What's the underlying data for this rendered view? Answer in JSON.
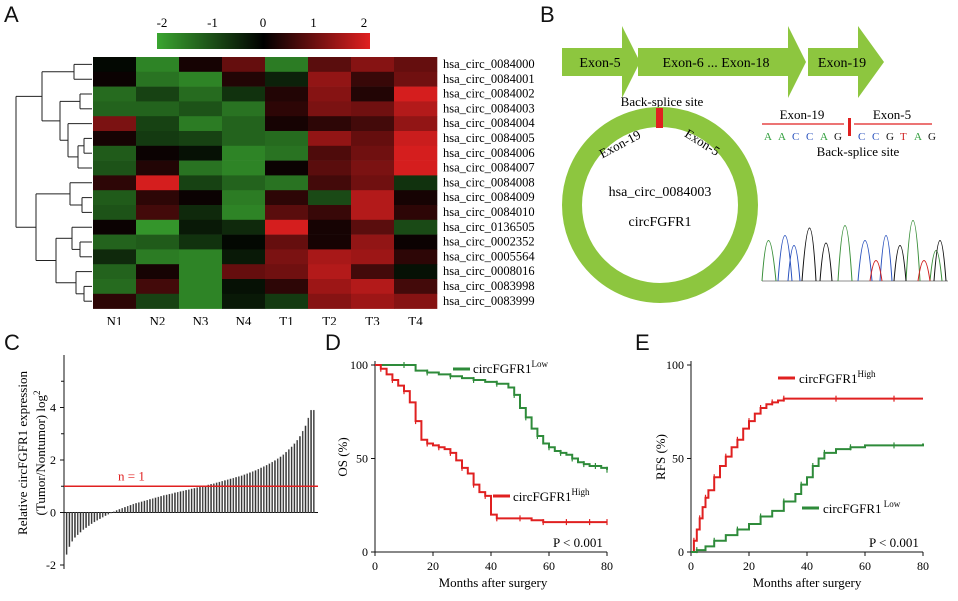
{
  "panels": {
    "a": "A",
    "b": "B",
    "c": "C",
    "d": "D",
    "e": "E"
  },
  "colors": {
    "green": "#3aa530",
    "red": "#e02020",
    "black": "#000000",
    "grey": "#9a9a9a",
    "arrow_green": "#8dc63f"
  },
  "heatmap": {
    "scale_ticks": [
      "-2",
      "-1",
      "0",
      "1",
      "2"
    ],
    "columns": [
      "N1",
      "N2",
      "N3",
      "N4",
      "T1",
      "T2",
      "T3",
      "T4"
    ],
    "rows": [
      "hsa_circ_0084000",
      "hsa_circ_0084001",
      "hsa_circ_0084002",
      "hsa_circ_0084003",
      "hsa_circ_0084004",
      "hsa_circ_0084005",
      "hsa_circ_0084006",
      "hsa_circ_0084007",
      "hsa_circ_0084008",
      "hsa_circ_0084009",
      "hsa_circ_0084010",
      "hsa_circ_0136505",
      "hsa_circ_0002352",
      "hsa_circ_0005564",
      "hsa_circ_0008016",
      "hsa_circ_0083998",
      "hsa_circ_0083999"
    ],
    "values": [
      [
        -0.1,
        -1.6,
        0.2,
        0.9,
        -1.5,
        0.8,
        1.2,
        0.9
      ],
      [
        0.1,
        -1.4,
        -1.6,
        0.3,
        -0.4,
        1.3,
        0.5,
        1.0
      ],
      [
        -1.3,
        -0.8,
        -1.3,
        -0.6,
        0.3,
        1.2,
        0.3,
        1.9
      ],
      [
        -1.2,
        -1.2,
        -1.0,
        -1.4,
        0.4,
        1.1,
        1.0,
        1.6
      ],
      [
        1.1,
        -0.8,
        -1.5,
        -1.2,
        0.2,
        0.4,
        0.6,
        1.3
      ],
      [
        0.2,
        -0.7,
        -0.8,
        -1.2,
        -1.3,
        1.3,
        0.9,
        1.8
      ],
      [
        -1.1,
        0.1,
        -0.2,
        -1.6,
        -1.4,
        0.7,
        1.0,
        1.9
      ],
      [
        -1.0,
        0.3,
        -1.4,
        -1.6,
        0.1,
        0.8,
        1.1,
        1.9
      ],
      [
        0.4,
        1.9,
        -0.8,
        -1.2,
        -1.4,
        0.6,
        1.0,
        -0.6
      ],
      [
        -1.1,
        0.4,
        0.1,
        -1.5,
        0.4,
        -0.9,
        1.6,
        0.2
      ],
      [
        -1.0,
        0.6,
        -0.5,
        -1.6,
        0.8,
        0.5,
        1.6,
        0.4
      ],
      [
        0.1,
        -1.8,
        -0.3,
        -0.5,
        1.9,
        0.2,
        0.8,
        -0.9
      ],
      [
        -1.2,
        -1.1,
        -0.6,
        -0.1,
        0.9,
        0.2,
        1.3,
        0.1
      ],
      [
        -0.5,
        -1.5,
        -1.6,
        -0.3,
        1.1,
        1.5,
        1.4,
        0.4
      ],
      [
        -1.2,
        0.2,
        -1.6,
        0.9,
        1.0,
        1.6,
        0.6,
        -0.2
      ],
      [
        -1.3,
        0.6,
        -1.6,
        -0.2,
        0.4,
        1.4,
        1.6,
        0.6
      ],
      [
        0.4,
        -0.8,
        -1.6,
        -0.3,
        -0.7,
        1.2,
        1.4,
        1.2
      ]
    ]
  },
  "structure": {
    "exons": [
      "Exon-5",
      "Exon-6 ... Exon-18",
      "Exon-19"
    ],
    "back_splice_label": "Back-splice site",
    "circle_left": "Exon-19",
    "circle_right": "Exon-5",
    "circle_name": "hsa_circ_0084003",
    "circle_alias": "circFGFR1",
    "seq_left_label": "Exon-19",
    "seq_right_label": "Exon-5",
    "seq_left": [
      "A",
      "A",
      "C",
      "C",
      "A",
      "G"
    ],
    "seq_right": [
      "C",
      "C",
      "G",
      "T",
      "A",
      "G"
    ],
    "seq_back_splice_label": "Back-splice site"
  },
  "expression": {
    "ylabel": "Relative circFGFR1 expression",
    "ylabel2": "(Tumor/Nontumor) log",
    "ylabel2_sub": "2",
    "yticks": [
      "-2",
      "0",
      "2",
      "4"
    ],
    "threshold_label": "n = 1",
    "threshold": 1,
    "ylim": [
      -2,
      6
    ]
  },
  "os": {
    "ylabel": "OS (%)",
    "xlabel": "Months after surgery",
    "yticks": [
      "0",
      "50",
      "100"
    ],
    "xticks": [
      "0",
      "20",
      "40",
      "60",
      "80"
    ],
    "low_label": "circFGFR1",
    "low_sup": "Low",
    "high_label": "circFGFR1",
    "high_sup": "High",
    "pvalue": "P < 0.001"
  },
  "rfs": {
    "ylabel": "RFS (%)",
    "xlabel": "Months after surgery",
    "yticks": [
      "0",
      "50",
      "100"
    ],
    "xticks": [
      "0",
      "20",
      "40",
      "60",
      "80"
    ],
    "high_label": "circFGFR1",
    "high_sup": "High",
    "low_label": "circFGFR1",
    "low_sup": " Low",
    "pvalue": "P < 0.001"
  },
  "chart_data": [
    {
      "type": "heatmap",
      "title": "",
      "x": [
        "N1",
        "N2",
        "N3",
        "N4",
        "T1",
        "T2",
        "T3",
        "T4"
      ],
      "y": [
        "hsa_circ_0084000",
        "hsa_circ_0084001",
        "hsa_circ_0084002",
        "hsa_circ_0084003",
        "hsa_circ_0084004",
        "hsa_circ_0084005",
        "hsa_circ_0084006",
        "hsa_circ_0084007",
        "hsa_circ_0084008",
        "hsa_circ_0084009",
        "hsa_circ_0084010",
        "hsa_circ_0136505",
        "hsa_circ_0002352",
        "hsa_circ_0005564",
        "hsa_circ_0008016",
        "hsa_circ_0083998",
        "hsa_circ_0083999"
      ],
      "colorscale": [
        -2,
        2
      ]
    },
    {
      "type": "bar",
      "ylabel": "Relative circFGFR1 expression (Tumor/Nontumor) log2",
      "ylim": [
        -2,
        6
      ],
      "values": [
        -1.6,
        -1.3,
        -1.1,
        -0.95,
        -0.85,
        -0.75,
        -0.65,
        -0.58,
        -0.5,
        -0.43,
        -0.36,
        -0.3,
        -0.24,
        -0.18,
        -0.12,
        -0.07,
        -0.02,
        0.03,
        0.08,
        0.12,
        0.16,
        0.2,
        0.24,
        0.28,
        0.32,
        0.35,
        0.38,
        0.41,
        0.44,
        0.47,
        0.5,
        0.53,
        0.56,
        0.59,
        0.62,
        0.65,
        0.67,
        0.7,
        0.72,
        0.75,
        0.77,
        0.8,
        0.82,
        0.85,
        0.87,
        0.9,
        0.92,
        0.95,
        0.97,
        1.0,
        1.02,
        1.05,
        1.08,
        1.1,
        1.13,
        1.16,
        1.19,
        1.22,
        1.25,
        1.28,
        1.31,
        1.34,
        1.37,
        1.4,
        1.44,
        1.48,
        1.52,
        1.56,
        1.6,
        1.65,
        1.7,
        1.75,
        1.8,
        1.86,
        1.92,
        1.98,
        2.05,
        2.12,
        2.2,
        2.3,
        2.4,
        2.5,
        2.62,
        2.75,
        2.9,
        3.1,
        3.3,
        3.6,
        3.9,
        3.9
      ]
    },
    {
      "type": "line",
      "ylabel": "OS (%)",
      "xlabel": "Months after surgery",
      "xlim": [
        0,
        80
      ],
      "ylim": [
        0,
        100
      ],
      "series": [
        {
          "name": "circFGFR1 Low",
          "x": [
            0,
            10,
            14,
            18,
            22,
            26,
            30,
            34,
            38,
            42,
            46,
            48,
            50,
            52,
            54,
            56,
            58,
            60,
            62,
            64,
            66,
            68,
            70,
            72,
            74,
            76,
            78,
            80
          ],
          "y": [
            100,
            100,
            97,
            96,
            95,
            94,
            93,
            92,
            91,
            90,
            88,
            84,
            77,
            72,
            66,
            62,
            58,
            56,
            54,
            53,
            52,
            50,
            48,
            47,
            46,
            46,
            45,
            44
          ]
        },
        {
          "name": "circFGFR1 High",
          "x": [
            0,
            2,
            4,
            6,
            8,
            10,
            12,
            14,
            16,
            18,
            20,
            22,
            24,
            26,
            28,
            30,
            32,
            34,
            36,
            38,
            40,
            42,
            46,
            50,
            54,
            58,
            62,
            66,
            70,
            74,
            78,
            80
          ],
          "y": [
            100,
            98,
            95,
            92,
            89,
            86,
            80,
            70,
            60,
            58,
            57,
            56,
            55,
            53,
            49,
            45,
            42,
            36,
            32,
            30,
            20,
            18,
            18,
            18,
            17,
            16,
            16,
            16,
            16,
            16,
            16,
            16
          ]
        }
      ]
    },
    {
      "type": "line",
      "ylabel": "RFS (%)",
      "xlabel": "Months after surgery",
      "xlim": [
        0,
        80
      ],
      "ylim": [
        0,
        100
      ],
      "series": [
        {
          "name": "circFGFR1 High",
          "x": [
            0,
            1,
            2,
            3,
            4,
            5,
            6,
            8,
            10,
            12,
            14,
            16,
            18,
            20,
            22,
            24,
            26,
            28,
            30,
            32,
            40,
            50,
            60,
            70,
            80
          ],
          "y": [
            0,
            6,
            12,
            18,
            24,
            29,
            33,
            40,
            46,
            51,
            56,
            60,
            66,
            70,
            74,
            77,
            79,
            80,
            81,
            82,
            82,
            82,
            82,
            82,
            82
          ]
        },
        {
          "name": "circFGFR1 Low",
          "x": [
            0,
            2,
            5,
            8,
            12,
            16,
            20,
            24,
            28,
            32,
            36,
            38,
            40,
            42,
            44,
            46,
            50,
            55,
            60,
            70,
            80
          ],
          "y": [
            0,
            1,
            3,
            6,
            9,
            12,
            15,
            19,
            22,
            27,
            31,
            36,
            40,
            46,
            50,
            53,
            55,
            56,
            57,
            57,
            58
          ]
        }
      ]
    }
  ]
}
